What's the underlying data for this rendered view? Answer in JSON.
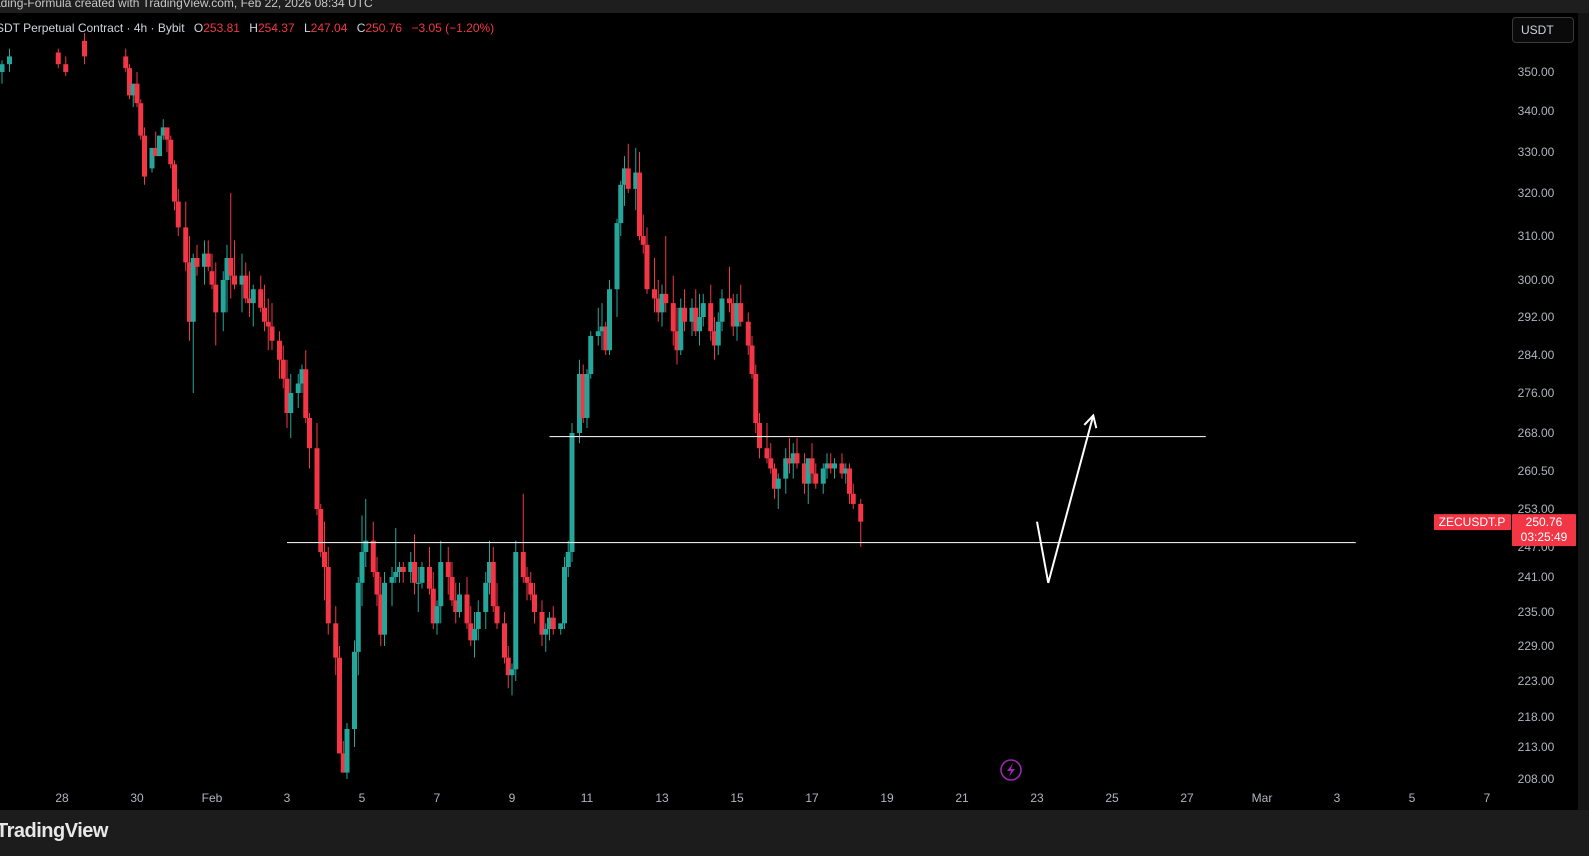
{
  "header": {
    "created_text": "ading-Formula created with TradingView.com, Feb 22, 2026 08:34 UTC",
    "symbol_text": "SDT Perpetual Contract · 4h · Bybit",
    "ohlc": [
      {
        "key": "O",
        "value": "253.81"
      },
      {
        "key": "H",
        "value": "254.37"
      },
      {
        "key": "L",
        "value": "247.04"
      },
      {
        "key": "C",
        "value": "250.76"
      }
    ],
    "change": "−3.05 (−1.20%)"
  },
  "currency_button": "USDT",
  "brand": "TradingView",
  "price_label": {
    "symbol": "ZECUSDT.P",
    "price": "250.76",
    "countdown": "03:25:49"
  },
  "colors": {
    "up": "#26a69a",
    "down": "#f23645",
    "background": "#000000",
    "axis_text": "#b2b5be"
  },
  "chart_data": {
    "type": "candlestick",
    "timeframe": "4h",
    "exchange": "Bybit",
    "title": "",
    "y_ticks": [
      350,
      340,
      330,
      320,
      310,
      300,
      292,
      284,
      276,
      268,
      260.5,
      253,
      247,
      241,
      235,
      229,
      223,
      218,
      213,
      208
    ],
    "y_tick_labels": [
      "350.00",
      "340.00",
      "330.00",
      "320.00",
      "310.00",
      "300.00",
      "292.00",
      "284.00",
      "276.00",
      "268.00",
      "260.50",
      "253.00",
      "247.00",
      "241.00",
      "235.00",
      "229.00",
      "223.00",
      "218.00",
      "213.00",
      "208.00"
    ],
    "x_ticks": [
      {
        "day": 28,
        "label": "28"
      },
      {
        "day": 30,
        "label": "30"
      },
      {
        "day": 32,
        "label": "Feb"
      },
      {
        "day": 34,
        "label": "3"
      },
      {
        "day": 36,
        "label": "5"
      },
      {
        "day": 38,
        "label": "7"
      },
      {
        "day": 40,
        "label": "9"
      },
      {
        "day": 42,
        "label": "11"
      },
      {
        "day": 44,
        "label": "13"
      },
      {
        "day": 46,
        "label": "15"
      },
      {
        "day": 48,
        "label": "17"
      },
      {
        "day": 50,
        "label": "19"
      },
      {
        "day": 52,
        "label": "21"
      },
      {
        "day": 54,
        "label": "23"
      },
      {
        "day": 56,
        "label": "25"
      },
      {
        "day": 58,
        "label": "27"
      },
      {
        "day": 60,
        "label": "Mar"
      },
      {
        "day": 62,
        "label": "3"
      },
      {
        "day": 64,
        "label": "5"
      },
      {
        "day": 66,
        "label": "7"
      }
    ],
    "support_line": {
      "price": 247.7,
      "from_day": 34.0,
      "to_day": 62.5
    },
    "resistance_line": {
      "price": 267.3,
      "from_day": 41.0,
      "to_day": 58.5
    },
    "projection_path": [
      {
        "day": 54.0,
        "price": 251
      },
      {
        "day": 54.3,
        "price": 240
      },
      {
        "day": 55.5,
        "price": 271.5
      }
    ],
    "candles": [
      [
        26.4,
        350,
        353,
        347,
        352
      ],
      [
        26.6,
        352,
        356,
        350,
        354
      ],
      [
        27.9,
        355,
        356,
        351,
        352
      ],
      [
        28.1,
        352,
        354,
        349,
        350
      ],
      [
        28.6,
        358,
        360,
        352,
        354
      ],
      [
        29.7,
        354,
        356,
        350,
        351
      ],
      [
        29.8,
        351,
        352,
        343,
        344
      ],
      [
        29.9,
        344,
        347,
        341,
        347
      ],
      [
        30,
        347,
        350,
        341,
        342
      ],
      [
        30.1,
        342,
        343,
        333,
        334
      ],
      [
        30.2,
        334,
        336,
        322,
        324
      ],
      [
        30.4,
        326,
        331,
        325,
        331
      ],
      [
        30.5,
        331,
        335,
        329,
        329
      ],
      [
        30.6,
        329,
        334,
        329,
        334
      ],
      [
        30.7,
        334,
        338,
        333,
        336
      ],
      [
        30.8,
        336,
        336,
        330,
        333
      ],
      [
        30.9,
        333,
        334,
        326,
        327
      ],
      [
        31,
        327,
        328,
        316,
        318
      ],
      [
        31.1,
        318,
        321,
        310,
        312
      ],
      [
        31.3,
        312,
        318,
        302,
        304
      ],
      [
        31.4,
        304,
        310,
        287,
        291
      ],
      [
        31.5,
        291,
        306,
        276,
        305
      ],
      [
        31.6,
        305,
        308,
        301,
        303
      ],
      [
        31.8,
        303,
        309,
        299,
        306
      ],
      [
        31.9,
        306,
        309,
        302,
        303
      ],
      [
        32,
        302,
        306,
        298,
        299
      ],
      [
        32.1,
        299,
        304,
        286,
        293
      ],
      [
        32.3,
        293,
        302,
        289,
        300
      ],
      [
        32.4,
        300,
        308,
        293,
        305
      ],
      [
        32.5,
        305,
        320,
        296,
        301
      ],
      [
        32.6,
        301,
        309,
        298,
        299
      ],
      [
        32.8,
        299,
        306,
        293,
        301
      ],
      [
        32.9,
        301,
        304,
        295,
        296
      ],
      [
        33,
        296,
        302,
        292,
        295
      ],
      [
        33.1,
        295,
        299,
        290,
        298
      ],
      [
        33.3,
        298,
        301,
        293,
        294
      ],
      [
        33.4,
        294,
        299,
        289,
        291
      ],
      [
        33.5,
        291,
        296,
        285,
        290
      ],
      [
        33.6,
        290,
        295,
        285,
        287
      ],
      [
        33.8,
        287,
        289,
        279,
        283
      ],
      [
        33.9,
        283,
        286,
        277,
        279
      ],
      [
        34,
        279,
        283,
        269,
        272
      ],
      [
        34.1,
        272,
        280,
        267,
        276
      ],
      [
        34.3,
        276,
        280,
        273,
        278
      ],
      [
        34.4,
        278,
        282,
        276,
        281
      ],
      [
        34.5,
        281,
        285,
        270,
        271
      ],
      [
        34.6,
        271,
        272,
        261,
        265
      ],
      [
        34.8,
        265,
        270,
        252,
        253
      ],
      [
        34.9,
        253,
        254,
        245,
        246
      ],
      [
        35,
        246,
        251,
        237,
        243
      ],
      [
        35.1,
        243,
        247,
        231,
        233
      ],
      [
        35.3,
        233,
        236,
        224,
        227
      ],
      [
        35.4,
        227,
        229,
        212,
        212
      ],
      [
        35.5,
        212,
        214,
        209,
        209
      ],
      [
        35.6,
        209,
        217,
        208,
        216
      ],
      [
        35.8,
        216,
        230,
        213,
        228
      ],
      [
        35.9,
        228,
        241,
        224,
        240
      ],
      [
        36,
        240,
        252,
        236,
        246
      ],
      [
        36.1,
        246,
        255,
        243,
        248
      ],
      [
        36.3,
        248,
        251,
        241,
        242
      ],
      [
        36.4,
        242,
        245,
        236,
        238
      ],
      [
        36.5,
        238,
        241,
        229,
        231
      ],
      [
        36.6,
        231,
        242,
        229,
        240
      ],
      [
        36.8,
        240,
        243,
        236,
        241
      ],
      [
        36.9,
        241,
        250,
        240,
        242
      ],
      [
        37,
        242,
        244,
        240,
        243
      ],
      [
        37.1,
        243,
        244,
        240,
        242
      ],
      [
        37.3,
        242,
        246,
        240,
        244
      ],
      [
        37.4,
        244,
        249,
        238,
        240
      ],
      [
        37.5,
        240,
        243,
        235,
        240
      ],
      [
        37.6,
        240,
        244,
        239,
        243
      ],
      [
        37.8,
        243,
        247,
        238,
        239
      ],
      [
        37.9,
        239,
        242,
        232,
        233
      ],
      [
        38,
        233,
        237,
        231,
        236
      ],
      [
        38.1,
        236,
        248,
        233,
        244
      ],
      [
        38.3,
        244,
        247,
        238,
        241
      ],
      [
        38.4,
        241,
        244,
        236,
        237
      ],
      [
        38.5,
        237,
        240,
        233,
        235
      ],
      [
        38.6,
        235,
        240,
        234,
        238
      ],
      [
        38.8,
        238,
        241,
        232,
        233
      ],
      [
        38.9,
        233,
        236,
        229,
        230
      ],
      [
        39,
        230,
        235,
        227,
        232
      ],
      [
        39.1,
        232,
        237,
        230,
        235
      ],
      [
        39.3,
        235,
        242,
        232,
        240
      ],
      [
        39.4,
        240,
        248,
        238,
        244
      ],
      [
        39.5,
        244,
        247,
        235,
        236
      ],
      [
        39.6,
        236,
        240,
        232,
        233
      ],
      [
        39.8,
        233,
        235,
        226,
        227
      ],
      [
        39.9,
        227,
        229,
        222,
        224
      ],
      [
        40,
        224,
        226,
        221,
        225
      ],
      [
        40.1,
        225,
        248,
        223,
        246
      ],
      [
        40.3,
        246,
        256,
        240,
        241
      ],
      [
        40.4,
        241,
        243,
        237,
        240
      ],
      [
        40.5,
        240,
        242,
        237,
        238
      ],
      [
        40.6,
        238,
        240,
        233,
        235
      ],
      [
        40.8,
        235,
        237,
        229,
        231
      ],
      [
        40.9,
        231,
        233,
        228,
        232
      ],
      [
        41,
        232,
        235,
        230,
        234
      ],
      [
        41.1,
        234,
        236,
        231,
        232
      ],
      [
        41.3,
        232,
        233,
        231,
        233
      ],
      [
        41.4,
        233,
        245,
        232,
        243
      ],
      [
        41.5,
        243,
        248,
        241,
        246
      ],
      [
        41.6,
        246,
        270,
        244,
        268
      ],
      [
        41.8,
        268,
        283,
        266,
        280
      ],
      [
        41.9,
        280,
        282,
        270,
        271
      ],
      [
        42,
        271,
        281,
        269,
        280
      ],
      [
        42.1,
        280,
        289,
        279,
        288
      ],
      [
        42.3,
        288,
        294,
        286,
        289
      ],
      [
        42.4,
        289,
        295,
        285,
        290
      ],
      [
        42.5,
        290,
        291,
        284,
        285
      ],
      [
        42.6,
        285,
        300,
        284,
        298
      ],
      [
        42.8,
        298,
        314,
        292,
        313
      ],
      [
        42.9,
        313,
        323,
        310,
        322
      ],
      [
        43,
        322,
        329,
        317,
        326
      ],
      [
        43.1,
        326,
        332,
        320,
        321
      ],
      [
        43.3,
        321,
        331,
        316,
        325
      ],
      [
        43.4,
        325,
        330,
        309,
        310
      ],
      [
        43.5,
        310,
        315,
        306,
        308
      ],
      [
        43.6,
        308,
        312,
        297,
        298
      ],
      [
        43.8,
        298,
        305,
        293,
        296
      ],
      [
        43.9,
        296,
        300,
        291,
        293
      ],
      [
        44,
        293,
        299,
        290,
        297
      ],
      [
        44.1,
        297,
        310,
        293,
        295
      ],
      [
        44.3,
        295,
        301,
        286,
        289
      ],
      [
        44.4,
        289,
        294,
        282,
        285
      ],
      [
        44.5,
        285,
        296,
        284,
        294
      ],
      [
        44.6,
        294,
        298,
        289,
        291
      ],
      [
        44.8,
        291,
        296,
        288,
        294
      ],
      [
        44.9,
        294,
        298,
        288,
        289
      ],
      [
        45,
        289,
        297,
        286,
        292
      ],
      [
        45.1,
        292,
        297,
        290,
        295
      ],
      [
        45.3,
        295,
        299,
        287,
        289
      ],
      [
        45.4,
        289,
        292,
        283,
        286
      ],
      [
        45.5,
        286,
        293,
        284,
        291
      ],
      [
        45.6,
        291,
        298,
        289,
        296
      ],
      [
        45.8,
        296,
        303,
        293,
        295
      ],
      [
        45.9,
        295,
        297,
        288,
        290
      ],
      [
        46,
        290,
        297,
        287,
        295
      ],
      [
        46.1,
        295,
        299,
        290,
        291
      ],
      [
        46.3,
        291,
        293,
        284,
        286
      ],
      [
        46.4,
        286,
        288,
        279,
        280
      ],
      [
        46.5,
        280,
        282,
        268,
        270
      ],
      [
        46.6,
        270,
        272,
        263,
        265
      ],
      [
        46.8,
        265,
        270,
        262,
        263
      ],
      [
        46.9,
        263,
        266,
        260,
        261
      ],
      [
        47,
        261,
        262,
        255,
        257
      ],
      [
        47.1,
        257,
        260,
        253,
        259
      ],
      [
        47.3,
        259,
        265,
        256,
        263
      ],
      [
        47.4,
        263,
        267,
        260,
        262
      ],
      [
        47.5,
        262,
        266,
        259,
        264
      ],
      [
        47.6,
        264,
        267,
        261,
        262
      ],
      [
        47.8,
        262,
        264,
        256,
        258
      ],
      [
        47.9,
        258,
        263,
        254,
        263
      ],
      [
        48,
        263,
        266,
        258,
        260
      ],
      [
        48.1,
        260,
        262,
        257,
        258
      ],
      [
        48.3,
        258,
        262,
        256,
        261
      ],
      [
        48.4,
        261,
        264,
        259,
        262
      ],
      [
        48.5,
        262,
        264,
        260,
        261
      ],
      [
        48.6,
        261,
        263,
        259,
        262
      ],
      [
        48.8,
        262,
        264,
        259,
        260
      ],
      [
        48.9,
        260,
        262,
        258,
        261
      ],
      [
        49,
        261,
        262,
        254,
        256
      ],
      [
        49.1,
        256,
        258,
        253,
        254
      ],
      [
        49.3,
        254,
        255,
        247,
        251
      ]
    ]
  }
}
